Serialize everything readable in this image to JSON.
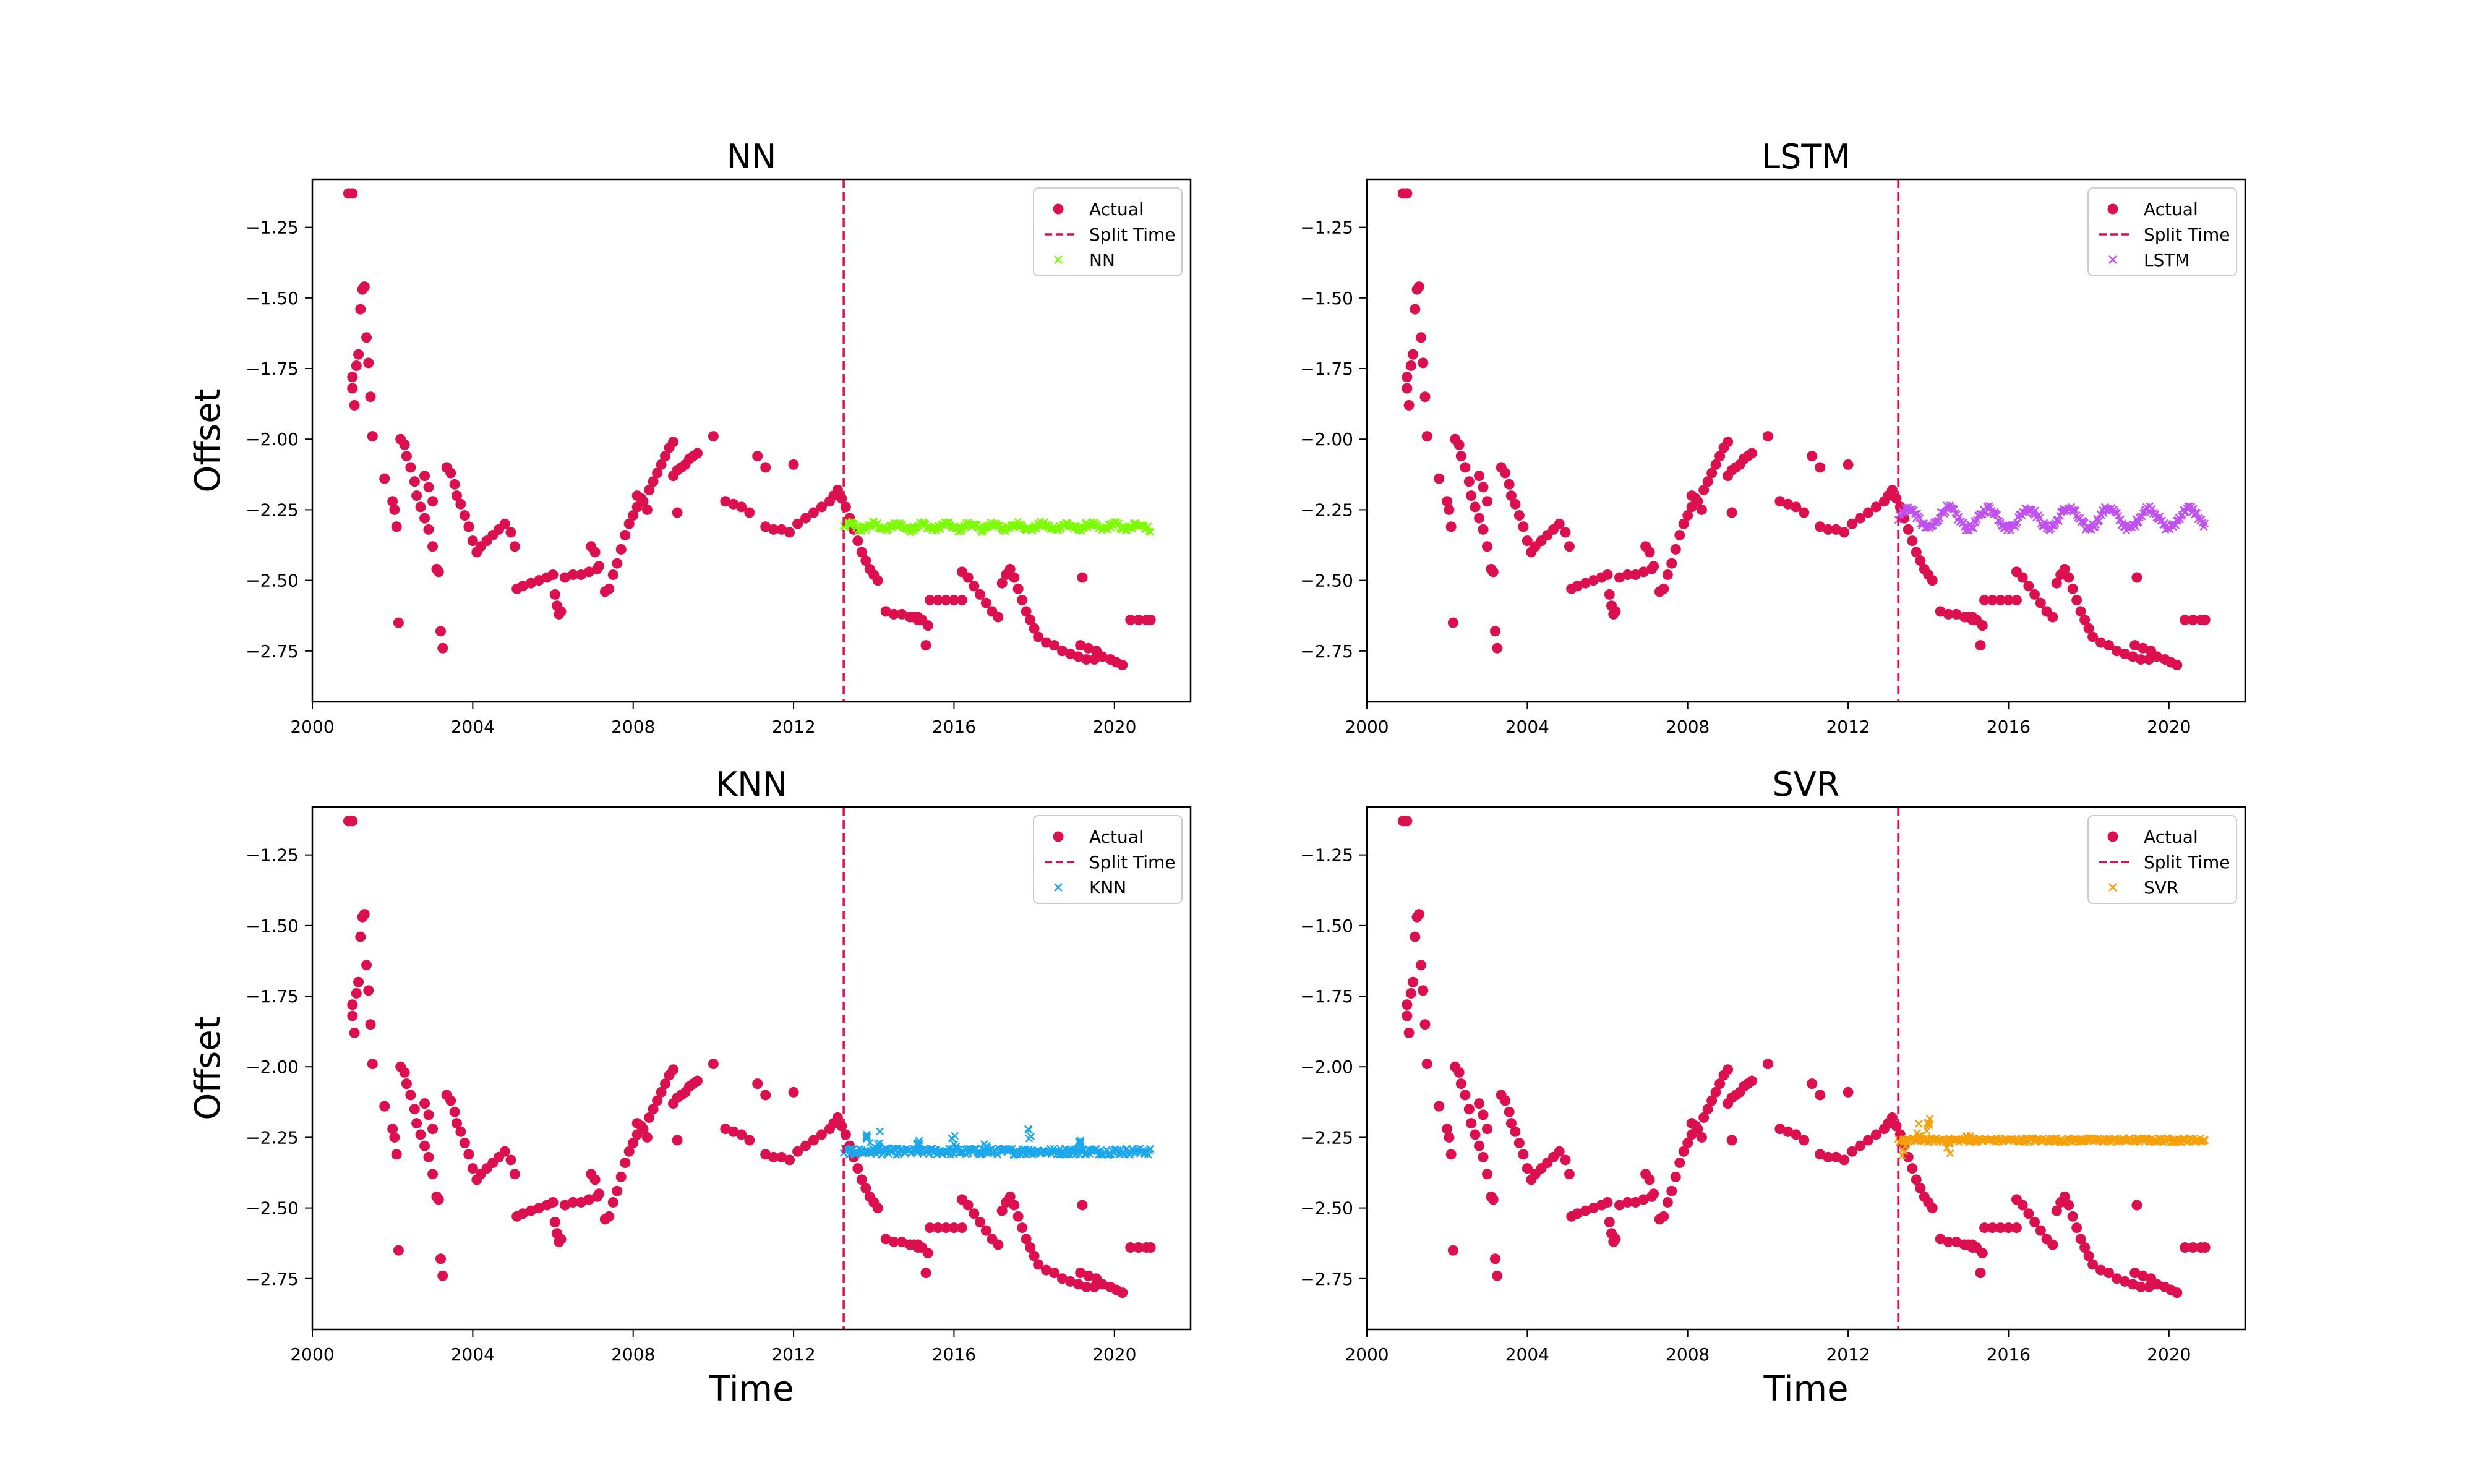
{
  "figure": {
    "x_axis_label": "Time",
    "y_axis_label": "Offset"
  },
  "colors": {
    "actual": "#dc0f4f",
    "split": "#dc0f4f",
    "NN": "#7cfc00",
    "LSTM": "#c050f0",
    "KNN": "#1aa7ec",
    "SVR": "#f5a00a"
  },
  "chart_data": [
    {
      "type": "scatter",
      "title": "NN",
      "xlabel": "",
      "ylabel": "Offset",
      "xlim": [
        2000.0,
        2021.9
      ],
      "ylim": [
        -2.93,
        -1.08
      ],
      "xticks": [
        "2000",
        "2004",
        "2008",
        "2012",
        "2016",
        "2020"
      ],
      "yticks": [
        "−1.25",
        "−1.50",
        "−1.75",
        "−2.00",
        "−2.25",
        "−2.50",
        "−2.75"
      ],
      "split_time": 2013.25,
      "legend": {
        "position": "upper right",
        "entries": [
          "Actual",
          "Split Time",
          "NN"
        ]
      },
      "prediction": {
        "name": "NN",
        "start": 2013.25,
        "end": 2020.9,
        "level": -2.31,
        "amp": 0.01,
        "period": 0.6,
        "noise": 0.01
      }
    },
    {
      "type": "scatter",
      "title": "LSTM",
      "xlabel": "",
      "ylabel": "",
      "xlim": [
        2000.0,
        2021.9
      ],
      "ylim": [
        -2.93,
        -1.08
      ],
      "xticks": [
        "2000",
        "2004",
        "2008",
        "2012",
        "2016",
        "2020"
      ],
      "yticks": [
        "−1.25",
        "−1.50",
        "−1.75",
        "−2.00",
        "−2.25",
        "−2.50",
        "−2.75"
      ],
      "split_time": 2013.25,
      "legend": {
        "position": "upper right",
        "entries": [
          "Actual",
          "Split Time",
          "LSTM"
        ]
      },
      "prediction": {
        "name": "LSTM",
        "start": 2013.25,
        "end": 2020.9,
        "level": -2.28,
        "amp": 0.035,
        "period": 1.0,
        "noise": 0.012
      }
    },
    {
      "type": "scatter",
      "title": "KNN",
      "xlabel": "Time",
      "ylabel": "Offset",
      "xlim": [
        2000.0,
        2021.9
      ],
      "ylim": [
        -2.93,
        -1.08
      ],
      "xticks": [
        "2000",
        "2004",
        "2008",
        "2012",
        "2016",
        "2020"
      ],
      "yticks": [
        "−1.25",
        "−1.50",
        "−1.75",
        "−2.00",
        "−2.25",
        "−2.50",
        "−2.75"
      ],
      "split_time": 2013.25,
      "legend": {
        "position": "upper right",
        "entries": [
          "Actual",
          "Split Time",
          "KNN"
        ]
      },
      "prediction": {
        "name": "KNN",
        "start": 2013.25,
        "end": 2020.9,
        "level": -2.3,
        "amp": 0.0,
        "period": 1.0,
        "noise": 0.012,
        "spikes": [
          [
            2013.85,
            -2.22
          ],
          [
            2014.1,
            -2.21
          ],
          [
            2015.1,
            -2.26
          ],
          [
            2016.0,
            -2.24
          ],
          [
            2016.8,
            -2.25
          ],
          [
            2017.9,
            -2.21
          ],
          [
            2019.1,
            -2.26
          ]
        ]
      }
    },
    {
      "type": "scatter",
      "title": "SVR",
      "xlabel": "Time",
      "ylabel": "",
      "xlim": [
        2000.0,
        2021.9
      ],
      "ylim": [
        -2.93,
        -1.08
      ],
      "xticks": [
        "2000",
        "2004",
        "2008",
        "2012",
        "2016",
        "2020"
      ],
      "yticks": [
        "−1.25",
        "−1.50",
        "−1.75",
        "−2.00",
        "−2.25",
        "−2.50",
        "−2.75"
      ],
      "split_time": 2013.25,
      "legend": {
        "position": "upper right",
        "entries": [
          "Actual",
          "Split Time",
          "SVR"
        ]
      },
      "prediction": {
        "name": "SVR",
        "start": 2013.25,
        "end": 2020.9,
        "level": -2.26,
        "amp": 0.0,
        "period": 1.0,
        "noise": 0.008,
        "spikes": [
          [
            2013.4,
            -2.32
          ],
          [
            2013.75,
            -2.2
          ],
          [
            2014.0,
            -2.18
          ],
          [
            2014.5,
            -2.31
          ],
          [
            2015.0,
            -2.24
          ]
        ]
      }
    }
  ],
  "actual_series": {
    "name": "Actual",
    "points": [
      [
        2000.9,
        -1.13
      ],
      [
        2001.0,
        -1.13
      ],
      [
        2001.0,
        -1.78
      ],
      [
        2001.0,
        -1.82
      ],
      [
        2001.05,
        -1.88
      ],
      [
        2001.1,
        -1.74
      ],
      [
        2001.15,
        -1.7
      ],
      [
        2001.2,
        -1.54
      ],
      [
        2001.25,
        -1.47
      ],
      [
        2001.3,
        -1.46
      ],
      [
        2001.35,
        -1.64
      ],
      [
        2001.4,
        -1.73
      ],
      [
        2001.45,
        -1.85
      ],
      [
        2001.5,
        -1.99
      ],
      [
        2001.8,
        -2.14
      ],
      [
        2002.0,
        -2.22
      ],
      [
        2002.05,
        -2.25
      ],
      [
        2002.1,
        -2.31
      ],
      [
        2002.15,
        -2.65
      ],
      [
        2002.2,
        -2.0
      ],
      [
        2002.3,
        -2.02
      ],
      [
        2002.35,
        -2.06
      ],
      [
        2002.45,
        -2.1
      ],
      [
        2002.55,
        -2.15
      ],
      [
        2002.6,
        -2.2
      ],
      [
        2002.7,
        -2.24
      ],
      [
        2002.8,
        -2.28
      ],
      [
        2002.9,
        -2.32
      ],
      [
        2003.0,
        -2.38
      ],
      [
        2002.8,
        -2.13
      ],
      [
        2002.9,
        -2.17
      ],
      [
        2003.0,
        -2.22
      ],
      [
        2003.1,
        -2.46
      ],
      [
        2003.15,
        -2.47
      ],
      [
        2003.2,
        -2.68
      ],
      [
        2003.25,
        -2.74
      ],
      [
        2003.35,
        -2.1
      ],
      [
        2003.45,
        -2.12
      ],
      [
        2003.55,
        -2.16
      ],
      [
        2003.6,
        -2.2
      ],
      [
        2003.7,
        -2.23
      ],
      [
        2003.8,
        -2.27
      ],
      [
        2003.9,
        -2.31
      ],
      [
        2004.0,
        -2.36
      ],
      [
        2004.1,
        -2.4
      ],
      [
        2004.2,
        -2.38
      ],
      [
        2004.35,
        -2.36
      ],
      [
        2004.5,
        -2.34
      ],
      [
        2004.65,
        -2.32
      ],
      [
        2004.8,
        -2.3
      ],
      [
        2004.95,
        -2.33
      ],
      [
        2005.05,
        -2.38
      ],
      [
        2005.1,
        -2.53
      ],
      [
        2005.25,
        -2.52
      ],
      [
        2005.45,
        -2.51
      ],
      [
        2005.65,
        -2.5
      ],
      [
        2005.85,
        -2.49
      ],
      [
        2006.0,
        -2.48
      ],
      [
        2006.05,
        -2.55
      ],
      [
        2006.1,
        -2.59
      ],
      [
        2006.15,
        -2.62
      ],
      [
        2006.2,
        -2.61
      ],
      [
        2006.3,
        -2.49
      ],
      [
        2006.5,
        -2.48
      ],
      [
        2006.7,
        -2.48
      ],
      [
        2006.9,
        -2.47
      ],
      [
        2007.1,
        -2.46
      ],
      [
        2006.95,
        -2.38
      ],
      [
        2007.05,
        -2.4
      ],
      [
        2007.15,
        -2.45
      ],
      [
        2007.3,
        -2.54
      ],
      [
        2007.4,
        -2.53
      ],
      [
        2007.5,
        -2.48
      ],
      [
        2007.6,
        -2.44
      ],
      [
        2007.7,
        -2.39
      ],
      [
        2007.8,
        -2.34
      ],
      [
        2007.9,
        -2.3
      ],
      [
        2008.0,
        -2.27
      ],
      [
        2008.1,
        -2.24
      ],
      [
        2008.2,
        -2.21
      ],
      [
        2008.1,
        -2.2
      ],
      [
        2008.25,
        -2.22
      ],
      [
        2008.35,
        -2.25
      ],
      [
        2008.4,
        -2.18
      ],
      [
        2008.5,
        -2.15
      ],
      [
        2008.6,
        -2.12
      ],
      [
        2008.7,
        -2.09
      ],
      [
        2008.8,
        -2.06
      ],
      [
        2008.9,
        -2.03
      ],
      [
        2009.0,
        -2.01
      ],
      [
        2009.0,
        -2.13
      ],
      [
        2009.1,
        -2.11
      ],
      [
        2009.2,
        -2.1
      ],
      [
        2009.3,
        -2.09
      ],
      [
        2009.4,
        -2.07
      ],
      [
        2009.5,
        -2.06
      ],
      [
        2009.6,
        -2.05
      ],
      [
        2009.1,
        -2.26
      ],
      [
        2010.0,
        -1.99
      ],
      [
        2010.3,
        -2.22
      ],
      [
        2010.5,
        -2.23
      ],
      [
        2010.7,
        -2.24
      ],
      [
        2010.9,
        -2.26
      ],
      [
        2011.1,
        -2.06
      ],
      [
        2011.3,
        -2.1
      ],
      [
        2011.3,
        -2.31
      ],
      [
        2011.5,
        -2.32
      ],
      [
        2011.7,
        -2.32
      ],
      [
        2011.9,
        -2.33
      ],
      [
        2012.0,
        -2.09
      ],
      [
        2012.1,
        -2.3
      ],
      [
        2012.3,
        -2.28
      ],
      [
        2012.5,
        -2.26
      ],
      [
        2012.7,
        -2.24
      ],
      [
        2012.9,
        -2.22
      ],
      [
        2013.0,
        -2.2
      ],
      [
        2013.1,
        -2.18
      ],
      [
        2013.2,
        -2.21
      ],
      [
        2013.3,
        -2.24
      ],
      [
        2013.4,
        -2.28
      ],
      [
        2013.5,
        -2.32
      ],
      [
        2013.6,
        -2.36
      ],
      [
        2013.7,
        -2.4
      ],
      [
        2013.8,
        -2.43
      ],
      [
        2013.9,
        -2.46
      ],
      [
        2014.0,
        -2.48
      ],
      [
        2014.1,
        -2.5
      ],
      [
        2014.3,
        -2.61
      ],
      [
        2014.5,
        -2.62
      ],
      [
        2014.7,
        -2.62
      ],
      [
        2014.9,
        -2.63
      ],
      [
        2015.0,
        -2.63
      ],
      [
        2015.1,
        -2.63
      ],
      [
        2015.2,
        -2.64
      ],
      [
        2015.35,
        -2.66
      ],
      [
        2015.1,
        -2.64
      ],
      [
        2015.3,
        -2.73
      ],
      [
        2015.4,
        -2.57
      ],
      [
        2015.6,
        -2.57
      ],
      [
        2015.8,
        -2.57
      ],
      [
        2016.0,
        -2.57
      ],
      [
        2016.2,
        -2.57
      ],
      [
        2016.2,
        -2.47
      ],
      [
        2016.35,
        -2.49
      ],
      [
        2016.5,
        -2.52
      ],
      [
        2016.65,
        -2.55
      ],
      [
        2016.8,
        -2.58
      ],
      [
        2016.95,
        -2.61
      ],
      [
        2017.1,
        -2.63
      ],
      [
        2017.2,
        -2.51
      ],
      [
        2017.3,
        -2.48
      ],
      [
        2017.4,
        -2.46
      ],
      [
        2017.5,
        -2.49
      ],
      [
        2017.6,
        -2.53
      ],
      [
        2017.7,
        -2.57
      ],
      [
        2017.8,
        -2.61
      ],
      [
        2017.9,
        -2.64
      ],
      [
        2018.0,
        -2.67
      ],
      [
        2018.1,
        -2.7
      ],
      [
        2018.3,
        -2.72
      ],
      [
        2018.5,
        -2.73
      ],
      [
        2018.7,
        -2.75
      ],
      [
        2018.9,
        -2.76
      ],
      [
        2019.1,
        -2.77
      ],
      [
        2019.3,
        -2.78
      ],
      [
        2019.5,
        -2.78
      ],
      [
        2019.2,
        -2.49
      ],
      [
        2019.15,
        -2.73
      ],
      [
        2019.35,
        -2.74
      ],
      [
        2019.55,
        -2.75
      ],
      [
        2019.7,
        -2.77
      ],
      [
        2019.9,
        -2.78
      ],
      [
        2020.05,
        -2.79
      ],
      [
        2020.2,
        -2.8
      ],
      [
        2020.4,
        -2.64
      ],
      [
        2020.6,
        -2.64
      ],
      [
        2020.8,
        -2.64
      ],
      [
        2020.9,
        -2.64
      ]
    ]
  }
}
